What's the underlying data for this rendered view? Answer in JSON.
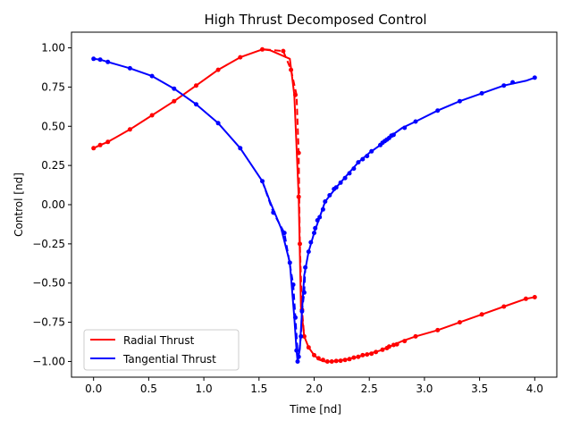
{
  "chart_data": {
    "type": "line",
    "title": "High Thrust Decomposed Control",
    "xlabel": "Time [nd]",
    "ylabel": "Control [nd]",
    "xlim": [
      -0.2,
      4.2
    ],
    "ylim": [
      -1.1,
      1.1
    ],
    "xticks": [
      0.0,
      0.5,
      1.0,
      1.5,
      2.0,
      2.5,
      3.0,
      3.5,
      4.0
    ],
    "xtick_labels": [
      "0.0",
      "0.5",
      "1.0",
      "1.5",
      "2.0",
      "2.5",
      "3.0",
      "3.5",
      "4.0"
    ],
    "yticks": [
      1.0,
      0.75,
      0.5,
      0.25,
      0.0,
      -0.25,
      -0.5,
      -0.75,
      -1.0
    ],
    "ytick_labels": [
      "1.00",
      "0.75",
      "0.50",
      "0.25",
      "0.00",
      "−0.25",
      "−0.50",
      "−0.75",
      "−1.00"
    ],
    "grid": false,
    "legend_position": "lower-left",
    "series": [
      {
        "name": "Radial Thrust",
        "color": "#ff0000",
        "solid": [
          [
            0.0,
            0.36
          ],
          [
            0.06,
            0.38
          ],
          [
            0.13,
            0.4
          ],
          [
            0.33,
            0.48
          ],
          [
            0.53,
            0.57
          ],
          [
            0.73,
            0.66
          ],
          [
            0.93,
            0.76
          ],
          [
            1.13,
            0.86
          ],
          [
            1.33,
            0.94
          ],
          [
            1.53,
            0.99
          ],
          [
            1.6,
            0.985
          ],
          [
            1.78,
            0.93
          ],
          [
            1.82,
            0.7
          ],
          [
            1.86,
            0.05
          ],
          [
            1.88,
            -0.65
          ],
          [
            1.91,
            -0.84
          ],
          [
            1.95,
            -0.91
          ],
          [
            2.0,
            -0.96
          ],
          [
            2.05,
            -0.99
          ],
          [
            2.1,
            -1.0
          ],
          [
            2.15,
            -1.0
          ],
          [
            2.2,
            -0.997
          ],
          [
            2.3,
            -0.985
          ],
          [
            2.4,
            -0.97
          ],
          [
            2.5,
            -0.95
          ],
          [
            2.6,
            -0.93
          ],
          [
            2.7,
            -0.9
          ],
          [
            2.8,
            -0.87
          ],
          [
            2.92,
            -0.84
          ],
          [
            3.12,
            -0.8
          ],
          [
            3.32,
            -0.75
          ],
          [
            3.52,
            -0.7
          ],
          [
            3.72,
            -0.65
          ],
          [
            3.92,
            -0.6
          ],
          [
            4.0,
            -0.59
          ]
        ],
        "dashed": [
          [
            1.55,
            0.99
          ],
          [
            1.72,
            0.98
          ],
          [
            1.79,
            0.86
          ],
          [
            1.84,
            0.7
          ],
          [
            1.86,
            0.33
          ],
          [
            1.87,
            -0.25
          ],
          [
            1.89,
            -0.67
          ],
          [
            1.91,
            -0.84
          ]
        ],
        "markers": [
          [
            0.0,
            0.36
          ],
          [
            0.06,
            0.38
          ],
          [
            0.13,
            0.4
          ],
          [
            0.33,
            0.48
          ],
          [
            0.53,
            0.57
          ],
          [
            0.73,
            0.66
          ],
          [
            0.93,
            0.76
          ],
          [
            1.13,
            0.86
          ],
          [
            1.33,
            0.94
          ],
          [
            1.53,
            0.99
          ],
          [
            1.72,
            0.98
          ],
          [
            1.79,
            0.86
          ],
          [
            1.83,
            0.7
          ],
          [
            1.86,
            0.33
          ],
          [
            1.86,
            0.05
          ],
          [
            1.87,
            -0.25
          ],
          [
            1.89,
            -0.67
          ],
          [
            1.91,
            -0.84
          ],
          [
            1.95,
            -0.91
          ],
          [
            2.0,
            -0.96
          ],
          [
            2.04,
            -0.98
          ],
          [
            2.08,
            -0.99
          ],
          [
            2.12,
            -1.0
          ],
          [
            2.16,
            -1.0
          ],
          [
            2.2,
            -0.997
          ],
          [
            2.24,
            -0.995
          ],
          [
            2.28,
            -0.99
          ],
          [
            2.32,
            -0.985
          ],
          [
            2.36,
            -0.975
          ],
          [
            2.4,
            -0.97
          ],
          [
            2.44,
            -0.96
          ],
          [
            2.48,
            -0.955
          ],
          [
            2.52,
            -0.95
          ],
          [
            2.56,
            -0.94
          ],
          [
            2.62,
            -0.925
          ],
          [
            2.66,
            -0.915
          ],
          [
            2.68,
            -0.905
          ],
          [
            2.72,
            -0.895
          ],
          [
            2.75,
            -0.89
          ],
          [
            2.82,
            -0.87
          ],
          [
            2.92,
            -0.84
          ],
          [
            3.12,
            -0.8
          ],
          [
            3.32,
            -0.75
          ],
          [
            3.52,
            -0.7
          ],
          [
            3.72,
            -0.65
          ],
          [
            3.92,
            -0.6
          ],
          [
            4.0,
            -0.59
          ]
        ]
      },
      {
        "name": "Tangential Thrust",
        "color": "#0000ff",
        "solid": [
          [
            0.0,
            0.93
          ],
          [
            0.06,
            0.925
          ],
          [
            0.13,
            0.91
          ],
          [
            0.33,
            0.87
          ],
          [
            0.53,
            0.82
          ],
          [
            0.73,
            0.74
          ],
          [
            0.93,
            0.64
          ],
          [
            1.13,
            0.52
          ],
          [
            1.33,
            0.36
          ],
          [
            1.53,
            0.15
          ],
          [
            1.6,
            0.02
          ],
          [
            1.7,
            -0.15
          ],
          [
            1.78,
            -0.37
          ],
          [
            1.82,
            -0.72
          ],
          [
            1.84,
            -0.93
          ],
          [
            1.85,
            -1.0
          ],
          [
            1.87,
            -0.92
          ],
          [
            1.89,
            -0.68
          ],
          [
            1.91,
            -0.45
          ],
          [
            1.95,
            -0.3
          ],
          [
            2.0,
            -0.18
          ],
          [
            2.05,
            -0.08
          ],
          [
            2.1,
            0.02
          ],
          [
            2.2,
            0.11
          ],
          [
            2.3,
            0.19
          ],
          [
            2.4,
            0.27
          ],
          [
            2.5,
            0.33
          ],
          [
            2.6,
            0.38
          ],
          [
            2.7,
            0.44
          ],
          [
            2.8,
            0.49
          ],
          [
            2.92,
            0.53
          ],
          [
            3.12,
            0.6
          ],
          [
            3.32,
            0.66
          ],
          [
            3.52,
            0.71
          ],
          [
            3.72,
            0.76
          ],
          [
            3.92,
            0.79
          ],
          [
            4.0,
            0.81
          ]
        ],
        "dashed": [
          [
            1.53,
            0.15
          ],
          [
            1.63,
            -0.05
          ],
          [
            1.73,
            -0.18
          ],
          [
            1.77,
            -0.34
          ],
          [
            1.81,
            -0.51
          ],
          [
            1.83,
            -0.72
          ],
          [
            1.85,
            -0.94
          ],
          [
            1.86,
            -0.97
          ],
          [
            1.88,
            -0.84
          ],
          [
            1.89,
            -0.68
          ],
          [
            1.91,
            -0.56
          ],
          [
            1.92,
            -0.4
          ]
        ],
        "markers": [
          [
            0.0,
            0.93
          ],
          [
            0.06,
            0.925
          ],
          [
            0.13,
            0.91
          ],
          [
            0.33,
            0.87
          ],
          [
            0.53,
            0.82
          ],
          [
            0.73,
            0.74
          ],
          [
            0.93,
            0.64
          ],
          [
            1.13,
            0.52
          ],
          [
            1.33,
            0.36
          ],
          [
            1.53,
            0.15
          ],
          [
            1.63,
            -0.05
          ],
          [
            1.73,
            -0.18
          ],
          [
            1.78,
            -0.37
          ],
          [
            1.81,
            -0.51
          ],
          [
            1.83,
            -0.72
          ],
          [
            1.84,
            -0.93
          ],
          [
            1.85,
            -1.0
          ],
          [
            1.86,
            -0.97
          ],
          [
            1.88,
            -0.84
          ],
          [
            1.89,
            -0.68
          ],
          [
            1.91,
            -0.56
          ],
          [
            1.92,
            -0.4
          ],
          [
            1.95,
            -0.3
          ],
          [
            1.97,
            -0.24
          ],
          [
            2.0,
            -0.18
          ],
          [
            2.01,
            -0.15
          ],
          [
            2.03,
            -0.1
          ],
          [
            2.05,
            -0.08
          ],
          [
            2.08,
            -0.03
          ],
          [
            2.1,
            0.02
          ],
          [
            2.14,
            0.06
          ],
          [
            2.18,
            0.1
          ],
          [
            2.2,
            0.11
          ],
          [
            2.24,
            0.14
          ],
          [
            2.28,
            0.17
          ],
          [
            2.32,
            0.2
          ],
          [
            2.36,
            0.23
          ],
          [
            2.4,
            0.27
          ],
          [
            2.44,
            0.29
          ],
          [
            2.48,
            0.31
          ],
          [
            2.52,
            0.34
          ],
          [
            2.6,
            0.38
          ],
          [
            2.62,
            0.395
          ],
          [
            2.64,
            0.405
          ],
          [
            2.66,
            0.415
          ],
          [
            2.68,
            0.425
          ],
          [
            2.7,
            0.44
          ],
          [
            2.72,
            0.445
          ],
          [
            2.82,
            0.49
          ],
          [
            2.92,
            0.53
          ],
          [
            3.12,
            0.6
          ],
          [
            3.32,
            0.66
          ],
          [
            3.52,
            0.71
          ],
          [
            3.72,
            0.76
          ],
          [
            3.8,
            0.78
          ],
          [
            4.0,
            0.81
          ]
        ]
      }
    ]
  }
}
